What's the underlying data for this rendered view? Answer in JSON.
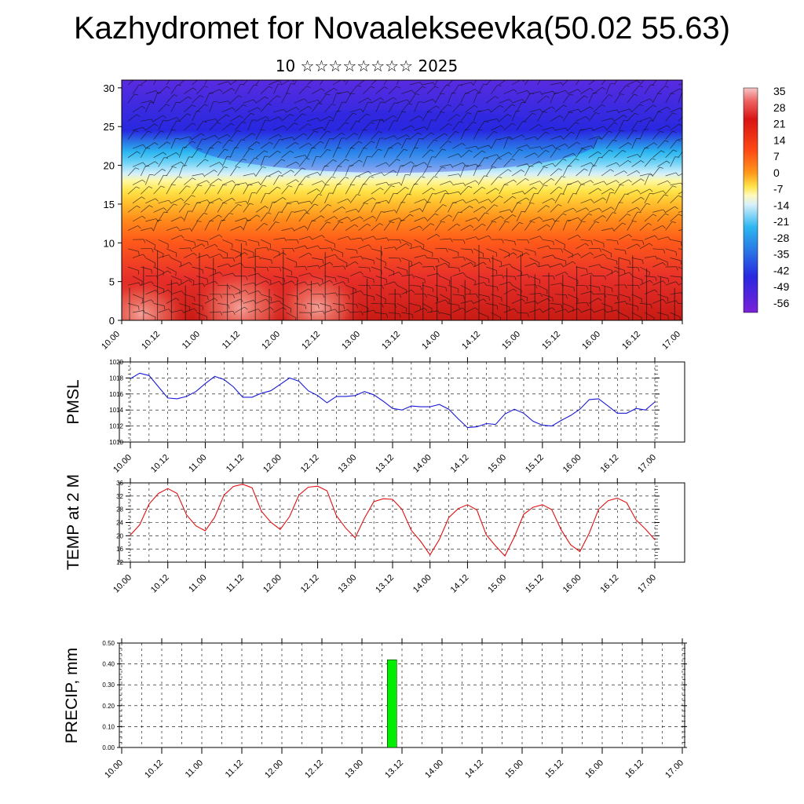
{
  "title": "Kazhydromet for Novaalekseevka(50.02 55.63)",
  "subtitle": "10 ☆☆☆☆☆☆☆☆ 2025",
  "chart_data": [
    {
      "type": "heatmap",
      "panel": "cross-section",
      "x_ticks": [
        "10.00",
        "10.12",
        "11.00",
        "11.12",
        "12.00",
        "12.12",
        "13.00",
        "13.12",
        "14.00",
        "14.12",
        "15.00",
        "15.12",
        "16.00",
        "16.12",
        "17.00"
      ],
      "y_ticks": [
        "0",
        "5",
        "10",
        "15",
        "20",
        "25",
        "30"
      ],
      "ylim": [
        0,
        31
      ],
      "colorbar_labels": [
        "35",
        "28",
        "21",
        "14",
        "7",
        "0",
        "-7",
        "-14",
        "-21",
        "-28",
        "-35",
        "-42",
        "-49",
        "-56"
      ],
      "colorbar_range": [
        -60,
        40
      ],
      "colors": {
        "hot": "#e8302a",
        "warm": "#ff8c1a",
        "yellow": "#ffe54a",
        "light": "#d6f0fa",
        "cyan": "#2cb6f0",
        "blue": "#2828e0",
        "violet": "#6a1fd0"
      }
    },
    {
      "type": "line",
      "ylabel": "PMSL",
      "x_ticks": [
        "10.00",
        "10.12",
        "11.00",
        "11.12",
        "12.00",
        "12.12",
        "13.00",
        "13.12",
        "14.00",
        "14.12",
        "15.00",
        "15.12",
        "16.00",
        "16.12",
        "17.00"
      ],
      "y_ticks": [
        "1010",
        "1012",
        "1014",
        "1016",
        "1018",
        "1020"
      ],
      "ylim": [
        1010,
        1020
      ],
      "x": [
        0,
        0.125,
        0.25,
        0.375,
        0.5,
        0.625,
        0.75,
        0.875,
        1,
        1.125,
        1.25,
        1.375,
        1.5,
        1.625,
        1.75,
        1.875,
        2,
        2.125,
        2.25,
        2.375,
        2.5,
        2.625,
        2.75,
        2.875,
        3,
        3.125,
        3.25,
        3.375,
        3.5,
        3.625,
        3.75,
        3.875,
        4,
        4.125,
        4.25,
        4.375,
        4.5,
        4.625,
        4.75,
        4.875,
        5,
        5.125,
        5.25,
        5.375,
        5.5,
        5.625,
        5.75,
        5.875,
        6,
        6.125,
        6.25,
        6.375,
        6.5,
        6.625,
        6.75,
        6.875,
        7
      ],
      "values": [
        1017.9,
        1018.6,
        1018.3,
        1016.9,
        1015.5,
        1015.4,
        1015.7,
        1016.3,
        1017.3,
        1018.2,
        1017.8,
        1016.9,
        1015.6,
        1015.6,
        1016.1,
        1016.4,
        1017.2,
        1018.0,
        1017.6,
        1016.4,
        1015.8,
        1014.9,
        1015.7,
        1015.7,
        1015.8,
        1016.3,
        1015.9,
        1015.1,
        1014.2,
        1014.0,
        1014.5,
        1014.4,
        1014.4,
        1014.7,
        1014.1,
        1012.9,
        1011.8,
        1011.9,
        1012.3,
        1012.2,
        1013.5,
        1014.1,
        1013.6,
        1012.6,
        1012.1,
        1012.0,
        1012.7,
        1013.3,
        1014.1,
        1015.3,
        1015.4,
        1014.5,
        1013.6,
        1013.6,
        1014.2,
        1014.0,
        1015.0
      ],
      "color": "#1a1ad6",
      "grid": true
    },
    {
      "type": "line",
      "ylabel": "TEMP at 2 M",
      "x_ticks": [
        "10.00",
        "10.12",
        "11.00",
        "11.12",
        "12.00",
        "12.12",
        "13.00",
        "13.12",
        "14.00",
        "14.12",
        "15.00",
        "15.12",
        "16.00",
        "16.12",
        "17.00"
      ],
      "y_ticks": [
        "12",
        "16",
        "20",
        "24",
        "28",
        "32",
        "36"
      ],
      "ylim": [
        12,
        36
      ],
      "x": [
        0,
        0.125,
        0.25,
        0.375,
        0.5,
        0.625,
        0.75,
        0.875,
        1,
        1.125,
        1.25,
        1.375,
        1.5,
        1.625,
        1.75,
        1.875,
        2,
        2.125,
        2.25,
        2.375,
        2.5,
        2.625,
        2.75,
        2.875,
        3,
        3.125,
        3.25,
        3.375,
        3.5,
        3.625,
        3.75,
        3.875,
        4,
        4.125,
        4.25,
        4.375,
        4.5,
        4.625,
        4.75,
        4.875,
        5,
        5.125,
        5.25,
        5.375,
        5.5,
        5.625,
        5.75,
        5.875,
        6,
        6.125,
        6.25,
        6.375,
        6.5,
        6.625,
        6.75,
        6.875,
        7
      ],
      "values": [
        20.2,
        23.3,
        29.6,
        32.8,
        34.3,
        32.8,
        26.3,
        23.0,
        21.5,
        25.6,
        32.3,
        34.9,
        35.6,
        34.5,
        27.4,
        24.1,
        21.9,
        25.8,
        32.3,
        34.7,
        35.0,
        33.6,
        26.1,
        22.3,
        19.4,
        25.3,
        30.3,
        31.2,
        31.0,
        28.0,
        21.6,
        18.3,
        14.2,
        18.9,
        25.5,
        28.2,
        29.4,
        27.8,
        20.3,
        16.9,
        13.9,
        19.6,
        26.5,
        28.6,
        29.4,
        27.9,
        21.8,
        17.3,
        15.2,
        20.8,
        28.0,
        30.6,
        31.4,
        30.0,
        24.8,
        22.0,
        18.8
      ],
      "color": "#e01010",
      "grid": true
    },
    {
      "type": "bar",
      "ylabel": "PRECIP, mm",
      "x_ticks": [
        "10.00",
        "10.12",
        "11.00",
        "11.12",
        "12.00",
        "12.12",
        "13.00",
        "13.12",
        "14.00",
        "14.12",
        "15.00",
        "15.12",
        "16.00",
        "16.12",
        "17.00"
      ],
      "y_ticks": [
        "0.00",
        "0.10",
        "0.20",
        "0.30",
        "0.40",
        "0.50"
      ],
      "ylim": [
        0,
        0.5
      ],
      "x": [
        3.375
      ],
      "values": [
        0.42
      ],
      "color": "#00ee00",
      "grid": true
    }
  ]
}
